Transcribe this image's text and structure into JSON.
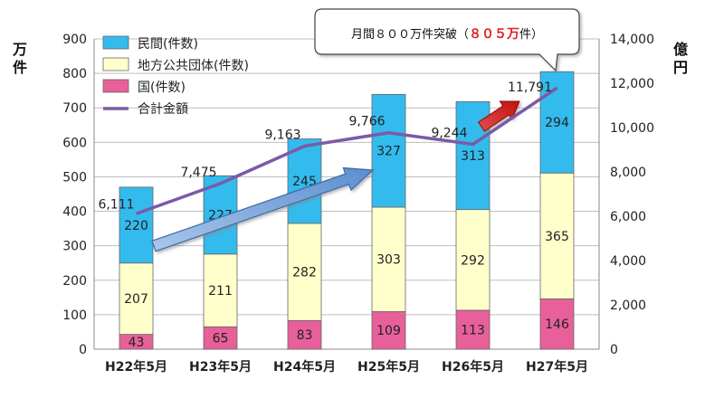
{
  "chart_data": {
    "type": "bar",
    "stacked": true,
    "categories": [
      "H22年5月",
      "H23年5月",
      "H24年5月",
      "H25年5月",
      "H26年5月",
      "H27年5月"
    ],
    "series": [
      {
        "name": "国(件数)",
        "axis": "left",
        "color": "#e8609a",
        "values": [
          43,
          65,
          83,
          109,
          113,
          146
        ]
      },
      {
        "name": "地方公共団体(件数)",
        "axis": "left",
        "color": "#ffffcc",
        "values": [
          207,
          211,
          282,
          303,
          292,
          365
        ]
      },
      {
        "name": "民間(件数)",
        "axis": "left",
        "color": "#33bbee",
        "values": [
          220,
          227,
          245,
          327,
          313,
          294
        ]
      }
    ],
    "line_series": {
      "name": "合計金額",
      "axis": "right",
      "color": "#7b5aa6",
      "values": [
        6111,
        7475,
        9163,
        9766,
        9244,
        11791
      ],
      "labels": [
        "6,111",
        "7,475",
        "9,163",
        "9,766",
        "9,244",
        "11,791"
      ]
    },
    "y_left": {
      "label": "万件",
      "ylim": [
        0,
        900
      ],
      "ticks": [
        0,
        100,
        200,
        300,
        400,
        500,
        600,
        700,
        800,
        900
      ]
    },
    "y_right": {
      "label": "億円",
      "ylim": [
        0,
        14000
      ],
      "ticks": [
        "0",
        "2,000",
        "4,000",
        "6,000",
        "8,000",
        "10,000",
        "12,000",
        "14,000"
      ]
    },
    "legend_order": [
      "民間(件数)",
      "地方公共団体(件数)",
      "国(件数)",
      "合計金額"
    ],
    "legend_placement": "top-left",
    "annotation": {
      "prefix": "月間８００万件突破（",
      "highlight": "８０５万",
      "suffix": "件）",
      "highlight_color": "#e02020"
    },
    "trend_arrows": [
      "blue-arrow",
      "red-arrow"
    ],
    "grid": true
  }
}
